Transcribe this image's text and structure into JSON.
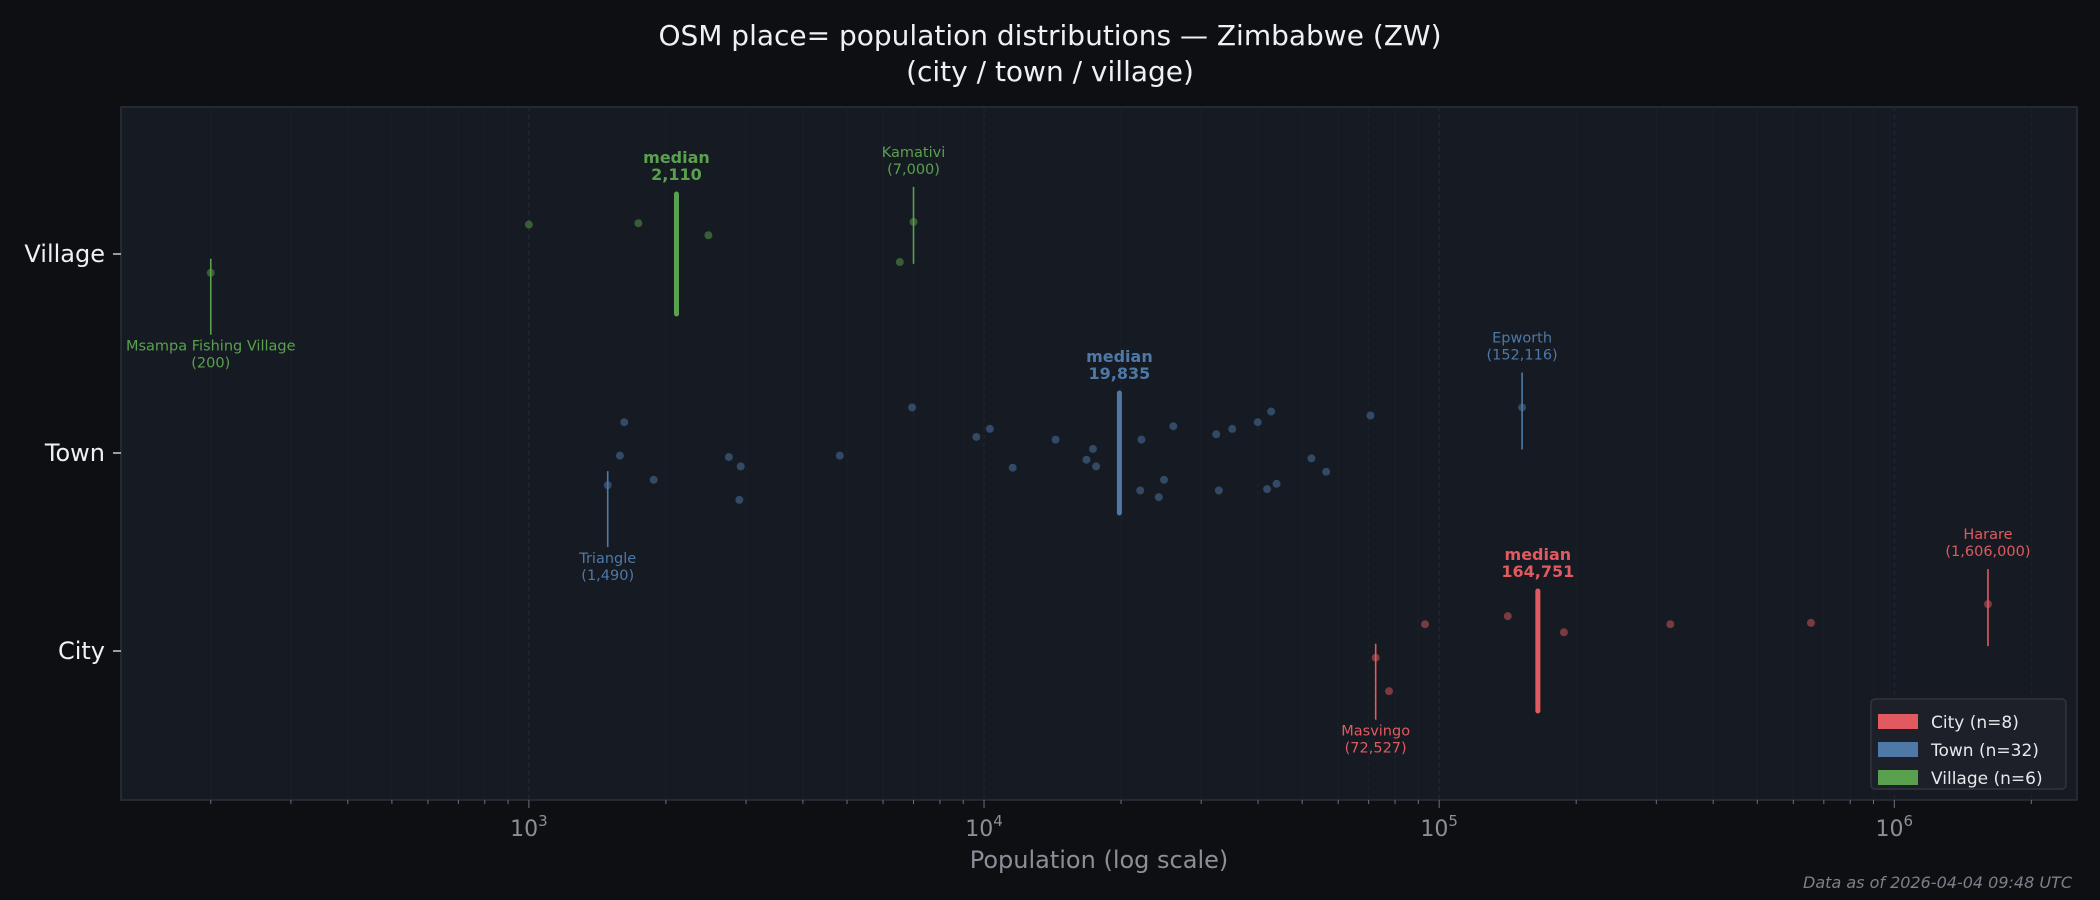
{
  "chart_data": {
    "type": "scatter",
    "title_line1": "OSM place= population distributions — Zimbabwe (ZW)",
    "title_line2": "(city / town / village)",
    "xlabel": "Population (log scale)",
    "xscale": "log",
    "xlim": [
      127,
      2520000
    ],
    "x_ticks": [
      {
        "base": "10",
        "exp": "3"
      },
      {
        "base": "10",
        "exp": "4"
      },
      {
        "base": "10",
        "exp": "5"
      },
      {
        "base": "10",
        "exp": "6"
      }
    ],
    "categories": [
      "City",
      "Town",
      "Village"
    ],
    "grid": "vertical minor dashed",
    "legend_position": "bottom-right",
    "series": [
      {
        "name": "City",
        "legend": "City  (n=8)",
        "color": "#e05a5f",
        "values": [
          72527,
          77600,
          93100,
          141500,
          188000,
          322000,
          656000,
          1606000
        ],
        "median": 164751,
        "median_label": "median",
        "median_value_label": "164,751",
        "annotations": [
          {
            "name": "Masvingo",
            "value": 72527,
            "value_label": "(72,527)",
            "position": "below"
          },
          {
            "name": "Harare",
            "value": 1606000,
            "value_label": "(1,606,000)",
            "position": "above"
          }
        ]
      },
      {
        "name": "Town",
        "legend": "Town  (n=32)",
        "color": "#4e79a7",
        "values": [
          1490,
          1585,
          1620,
          1880,
          2750,
          2900,
          2920,
          4820,
          6950,
          9620,
          10300,
          11560,
          14360,
          16790,
          17350,
          17630,
          22040,
          22170,
          24210,
          24860,
          26060,
          32370,
          32800,
          35100,
          39930,
          41870,
          42740,
          43930,
          52400,
          56440,
          70640,
          152116
        ],
        "median": 19835,
        "median_label": "median",
        "median_value_label": "19,835",
        "annotations": [
          {
            "name": "Triangle",
            "value": 1490,
            "value_label": "(1,490)",
            "position": "below"
          },
          {
            "name": "Epworth",
            "value": 152116,
            "value_label": "(152,116)",
            "position": "above"
          }
        ]
      },
      {
        "name": "Village",
        "legend": "Village  (n=6)",
        "color": "#59a14f",
        "values": [
          200,
          1000,
          1740,
          2480,
          6530,
          7000
        ],
        "median": 2110,
        "median_label": "median",
        "median_value_label": "2,110",
        "annotations": [
          {
            "name": "Msampa Fishing Village",
            "value": 200,
            "value_label": "(200)",
            "position": "below"
          },
          {
            "name": "Kamativi",
            "value": 7000,
            "value_label": "(7,000)",
            "position": "above"
          }
        ]
      }
    ]
  },
  "footer": "Data as of 2026-04-04 09:48 UTC"
}
